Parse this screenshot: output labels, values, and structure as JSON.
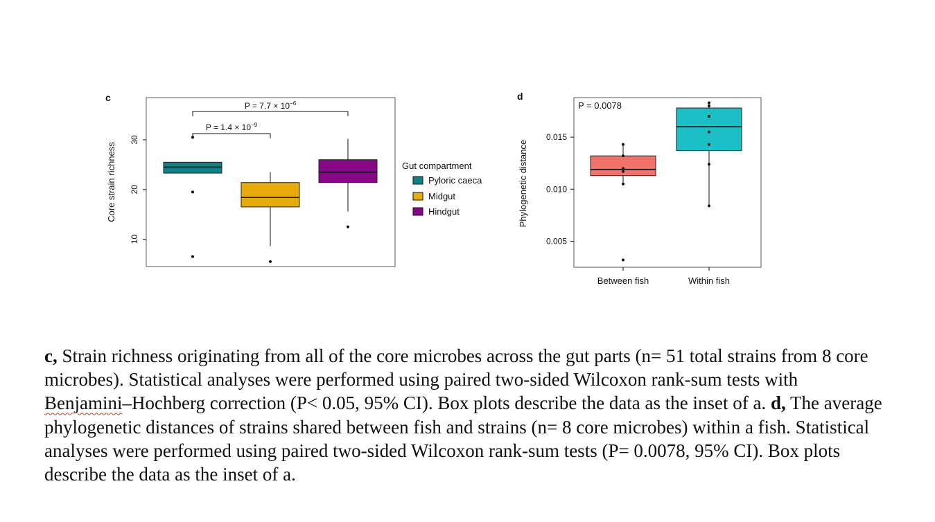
{
  "chart_data": [
    {
      "panel": "c",
      "type": "box",
      "ylabel": "Core strain richness",
      "ylim": [
        4.5,
        38.5
      ],
      "yticks": [
        10,
        20,
        30
      ],
      "series": [
        {
          "name": "Pyloric caeca",
          "color": "#0d8387",
          "q1": 23.3,
          "median": 24.5,
          "q3": 25.5,
          "whisker_low": 23.3,
          "whisker_high": 25.5,
          "outliers": [
            30.5,
            19.5,
            6.5
          ]
        },
        {
          "name": "Midgut",
          "color": "#e8ab0c",
          "q1": 16.5,
          "median": 18.4,
          "q3": 21.4,
          "whisker_low": 8.6,
          "whisker_high": 23.5,
          "outliers": [
            5.5
          ]
        },
        {
          "name": "Hindgut",
          "color": "#870788",
          "q1": 21.4,
          "median": 23.5,
          "q3": 26.0,
          "whisker_low": 15.6,
          "whisker_high": 30.2,
          "outliers": [
            12.5
          ]
        }
      ],
      "annotations": [
        {
          "from": "Pyloric caeca",
          "to": "Midgut",
          "p": "P = 1.4 × 10",
          "exp": "−9"
        },
        {
          "from": "Pyloric caeca",
          "to": "Hindgut",
          "p": "P = 7.7 × 10",
          "exp": "−6"
        }
      ],
      "legend": {
        "title": "Gut compartment",
        "placement": "right"
      }
    },
    {
      "panel": "d",
      "type": "box",
      "ylabel": "Phylogenetic distance",
      "ylim": [
        0.0025,
        0.0188
      ],
      "yticks": [
        0.005,
        0.01,
        0.015
      ],
      "ytick_labels": [
        "0.005",
        "0.010",
        "0.015"
      ],
      "categories": [
        "Between fish",
        "Within fish"
      ],
      "series": [
        {
          "name": "Between fish",
          "color": "#f2736b",
          "q1": 0.0113,
          "median": 0.0119,
          "q3": 0.0132,
          "whisker_low": 0.0105,
          "whisker_high": 0.0143,
          "points": [
            0.0143,
            0.0132,
            0.012,
            0.0117,
            0.0105
          ],
          "outliers": [
            0.0032
          ]
        },
        {
          "name": "Within fish",
          "color": "#1bbfc6",
          "q1": 0.0137,
          "median": 0.016,
          "q3": 0.0178,
          "whisker_low": 0.0084,
          "whisker_high": 0.0183,
          "points": [
            0.0183,
            0.018,
            0.017,
            0.0155,
            0.0143,
            0.0124,
            0.0084
          ],
          "outliers": []
        }
      ],
      "annotations": [
        {
          "p": "P = 0.0078"
        }
      ]
    }
  ],
  "panels": {
    "c_label": "c",
    "d_label": "d"
  },
  "caption": {
    "c_label": "c,",
    "c_text_1": " Strain richness originating from all of the core microbes across the gut parts (n= 51 total strains from 8 core microbes). Statistical analyses were performed using paired two-sided Wilcoxon rank-sum tests with ",
    "c_squiggle": "Benjamini",
    "c_text_2": "–Hochberg correction (P< 0.05, 95% CI). Box plots describe the data as the inset of a. ",
    "d_label": "d,",
    "d_text": " The average phylogenetic distances of strains shared between fish and strains (n= 8 core microbes) within a fish. Statistical analyses were performed using paired two-sided Wilcoxon rank-sum tests (P= 0.0078, 95% CI). Box plots describe the data as the inset of a."
  }
}
